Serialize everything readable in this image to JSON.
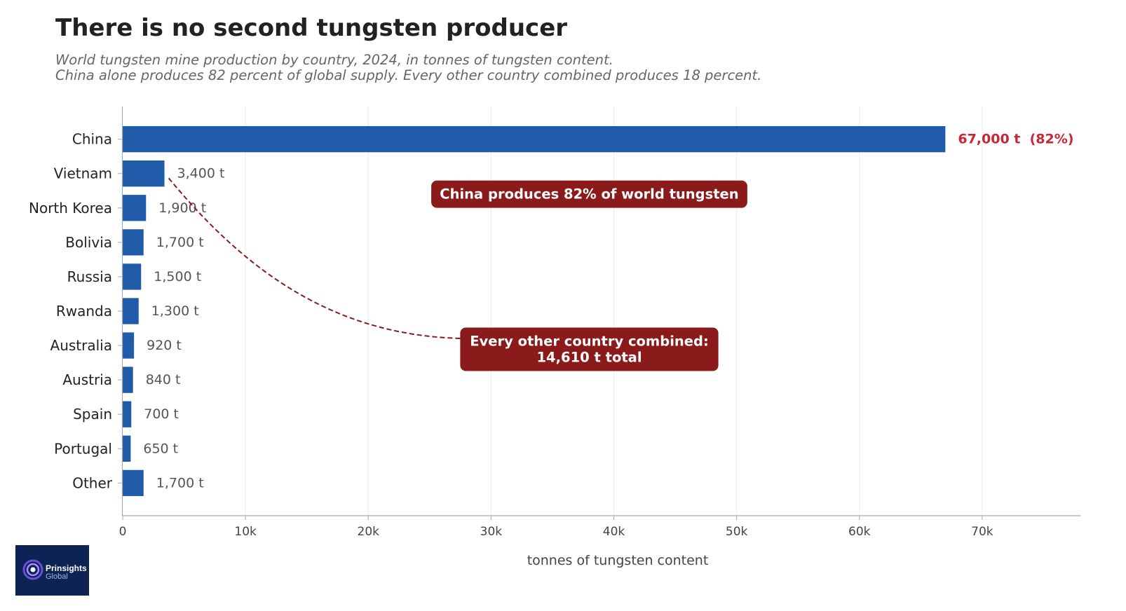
{
  "chart_data": {
    "type": "bar",
    "orientation": "horizontal",
    "title": "There is no second tungsten producer",
    "subtitle_lines": [
      "World tungsten mine production by country, 2024, in tonnes of tungsten content.",
      "China alone produces 82 percent of global supply. Every other country combined produces 18 percent."
    ],
    "categories": [
      "China",
      "Vietnam",
      "North Korea",
      "Bolivia",
      "Russia",
      "Rwanda",
      "Australia",
      "Austria",
      "Spain",
      "Portugal",
      "Other"
    ],
    "values": [
      67000,
      3400,
      1900,
      1700,
      1500,
      1300,
      920,
      840,
      700,
      650,
      1700
    ],
    "value_labels": [
      "67,000 t  (82%)",
      "3,400 t",
      "1,900 t",
      "1,700 t",
      "1,500 t",
      "1,300 t",
      "920 t",
      "840 t",
      "700 t",
      "650 t",
      "1,700 t"
    ],
    "xlabel": "tonnes of tungsten content",
    "xlim": [
      0,
      78000
    ],
    "xticks": [
      0,
      10000,
      20000,
      30000,
      40000,
      50000,
      60000,
      70000
    ],
    "xtick_labels": [
      "0",
      "10k",
      "20k",
      "30k",
      "40k",
      "50k",
      "60k",
      "70k"
    ],
    "grid": "vertical",
    "bar_color": "#1f5ba8",
    "highlight_label_color": "#c62838",
    "annotations": [
      {
        "lines": [
          "China produces 82% of world tungsten"
        ],
        "x": 38000,
        "category": "North Korea",
        "color": "#8b1a1a"
      },
      {
        "lines": [
          "Every other country combined:",
          "14,610 t total"
        ],
        "x": 38000,
        "category": "Australia",
        "color": "#8b1a1a",
        "arrow_to_category": "Vietnam"
      }
    ]
  },
  "logo": {
    "name": "Prinsights",
    "sub": "Global"
  }
}
